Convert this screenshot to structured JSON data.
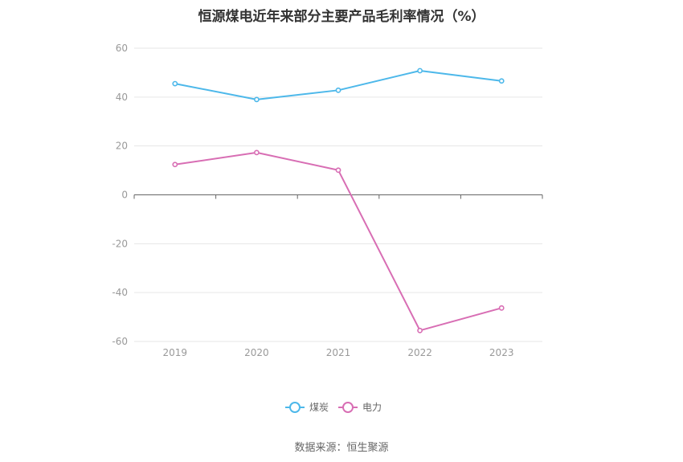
{
  "chart_data": {
    "type": "line",
    "title": "恒源煤电近年来部分主要产品毛利率情况（%）",
    "categories": [
      "2019",
      "2020",
      "2021",
      "2022",
      "2023"
    ],
    "series": [
      {
        "name": "煤炭",
        "color": "#4db8ea",
        "values": [
          45.5,
          39.0,
          42.8,
          50.8,
          46.6
        ]
      },
      {
        "name": "电力",
        "color": "#d86eb4",
        "values": [
          12.4,
          17.3,
          10.1,
          -55.5,
          -46.3
        ]
      }
    ],
    "ylim": [
      -60,
      60
    ],
    "yticks": [
      60,
      40,
      20,
      0,
      -20,
      -40,
      -60
    ],
    "grid": true,
    "legend_position": "bottom-center"
  },
  "source": "数据来源：恒生聚源"
}
